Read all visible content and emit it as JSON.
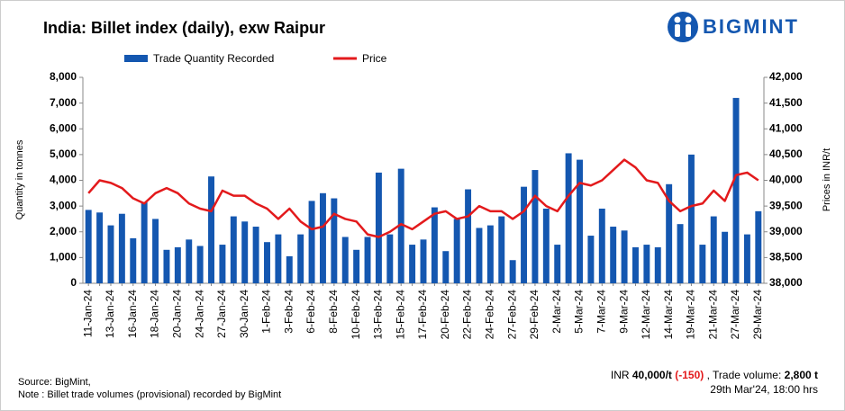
{
  "brand": "BIGMINT",
  "chart_data": {
    "type": "bar_line",
    "title": "India: Billet index (daily), exw Raipur",
    "y_label": "Quantity in tonnes",
    "y2_label": "Prices in INR/t",
    "categories": [
      "11-Jan-24",
      null,
      "13-Jan-24",
      null,
      "16-Jan-24",
      null,
      "18-Jan-24",
      null,
      "20-Jan-24",
      null,
      "24-Jan-24",
      null,
      "27-Jan-24",
      null,
      "30-Jan-24",
      null,
      "1-Feb-24",
      null,
      "3-Feb-24",
      null,
      "6-Feb-24",
      null,
      "8-Feb-24",
      null,
      "10-Feb-24",
      null,
      "13-Feb-24",
      null,
      "15-Feb-24",
      null,
      "17-Feb-24",
      null,
      "20-Feb-24",
      null,
      "22-Feb-24",
      null,
      "24-Feb-24",
      null,
      "27-Feb-24",
      null,
      "29-Feb-24",
      null,
      "2-Mar-24",
      null,
      "5-Mar-24",
      null,
      "7-Mar-24",
      null,
      "9-Mar-24",
      null,
      "12-Mar-24",
      null,
      "14-Mar-24",
      null,
      "19-Mar-24",
      null,
      "21-Mar-24",
      null,
      "27-Mar-24",
      null,
      "29-Mar-24"
    ],
    "series": [
      {
        "name": "Trade Quantity Recorded",
        "type": "bar",
        "color": "#1457b0",
        "values": [
          2850,
          2750,
          2250,
          2700,
          1750,
          3150,
          2500,
          1300,
          1400,
          1700,
          1450,
          4150,
          1500,
          2600,
          2400,
          2200,
          1600,
          1900,
          1050,
          1900,
          3200,
          3500,
          3300,
          1800,
          1300,
          1800,
          4300,
          1900,
          4450,
          1500,
          1700,
          2950,
          1250,
          2500,
          3650,
          2150,
          2250,
          2600,
          900,
          3750,
          4400,
          2900,
          1500,
          5050,
          4800,
          1850,
          2900,
          2200,
          2050,
          1400,
          1500,
          1400,
          3850,
          2300,
          5000,
          1500,
          2600,
          2000,
          7200,
          1900,
          2800
        ]
      },
      {
        "name": "Price",
        "type": "line",
        "axis": "y2",
        "color": "#e31a1c",
        "values": [
          39750,
          40000,
          39950,
          39850,
          39650,
          39550,
          39750,
          39850,
          39750,
          39550,
          39450,
          39400,
          39800,
          39700,
          39700,
          39550,
          39450,
          39250,
          39450,
          39200,
          39050,
          39100,
          39350,
          39250,
          39200,
          38950,
          38900,
          39000,
          39150,
          39050,
          39200,
          39350,
          39400,
          39250,
          39300,
          39500,
          39400,
          39400,
          39250,
          39400,
          39700,
          39500,
          39400,
          39700,
          39950,
          39900,
          40000,
          40200,
          40400,
          40250,
          40000,
          39950,
          39600,
          39400,
          39500,
          39550,
          39800,
          39600,
          40100,
          40150,
          40000
        ]
      }
    ],
    "ylim": [
      0,
      8000
    ],
    "yticks": [
      0,
      {
        "value": 1000,
        "label": "1,000"
      },
      {
        "value": 2000,
        "label": "2,000"
      },
      {
        "value": 3000,
        "label": "3,000"
      },
      {
        "value": 4000,
        "label": "4,000"
      },
      {
        "value": 5000,
        "label": "5,000"
      },
      {
        "value": 6000,
        "label": "6,000"
      },
      {
        "value": 7000,
        "label": "7,000"
      },
      {
        "value": 8000,
        "label": "8,000"
      }
    ],
    "y2lim": [
      38000,
      42000
    ],
    "y2ticks": [
      {
        "value": 38000,
        "label": "38,000"
      },
      {
        "value": 38500,
        "label": "38,500"
      },
      {
        "value": 39000,
        "label": "39,000"
      },
      {
        "value": 39500,
        "label": "39,500"
      },
      {
        "value": 40000,
        "label": "40,000"
      },
      {
        "value": 40500,
        "label": "40,500"
      },
      {
        "value": 41000,
        "label": "41,000"
      },
      {
        "value": 41500,
        "label": "41,500"
      },
      {
        "value": 42000,
        "label": "42,000"
      }
    ],
    "grid": false,
    "legend": "top"
  },
  "footer": {
    "source": "Source: BigMint,",
    "note": "Note : Billet trade volumes (provisional) recorded by BigMint",
    "price_prefix": "INR ",
    "price": "40,000/t",
    "change": " (-150)",
    "volume_label": " , Trade volume: ",
    "volume": "2,800 t",
    "timestamp": "29th Mar'24,  18:00 hrs"
  }
}
